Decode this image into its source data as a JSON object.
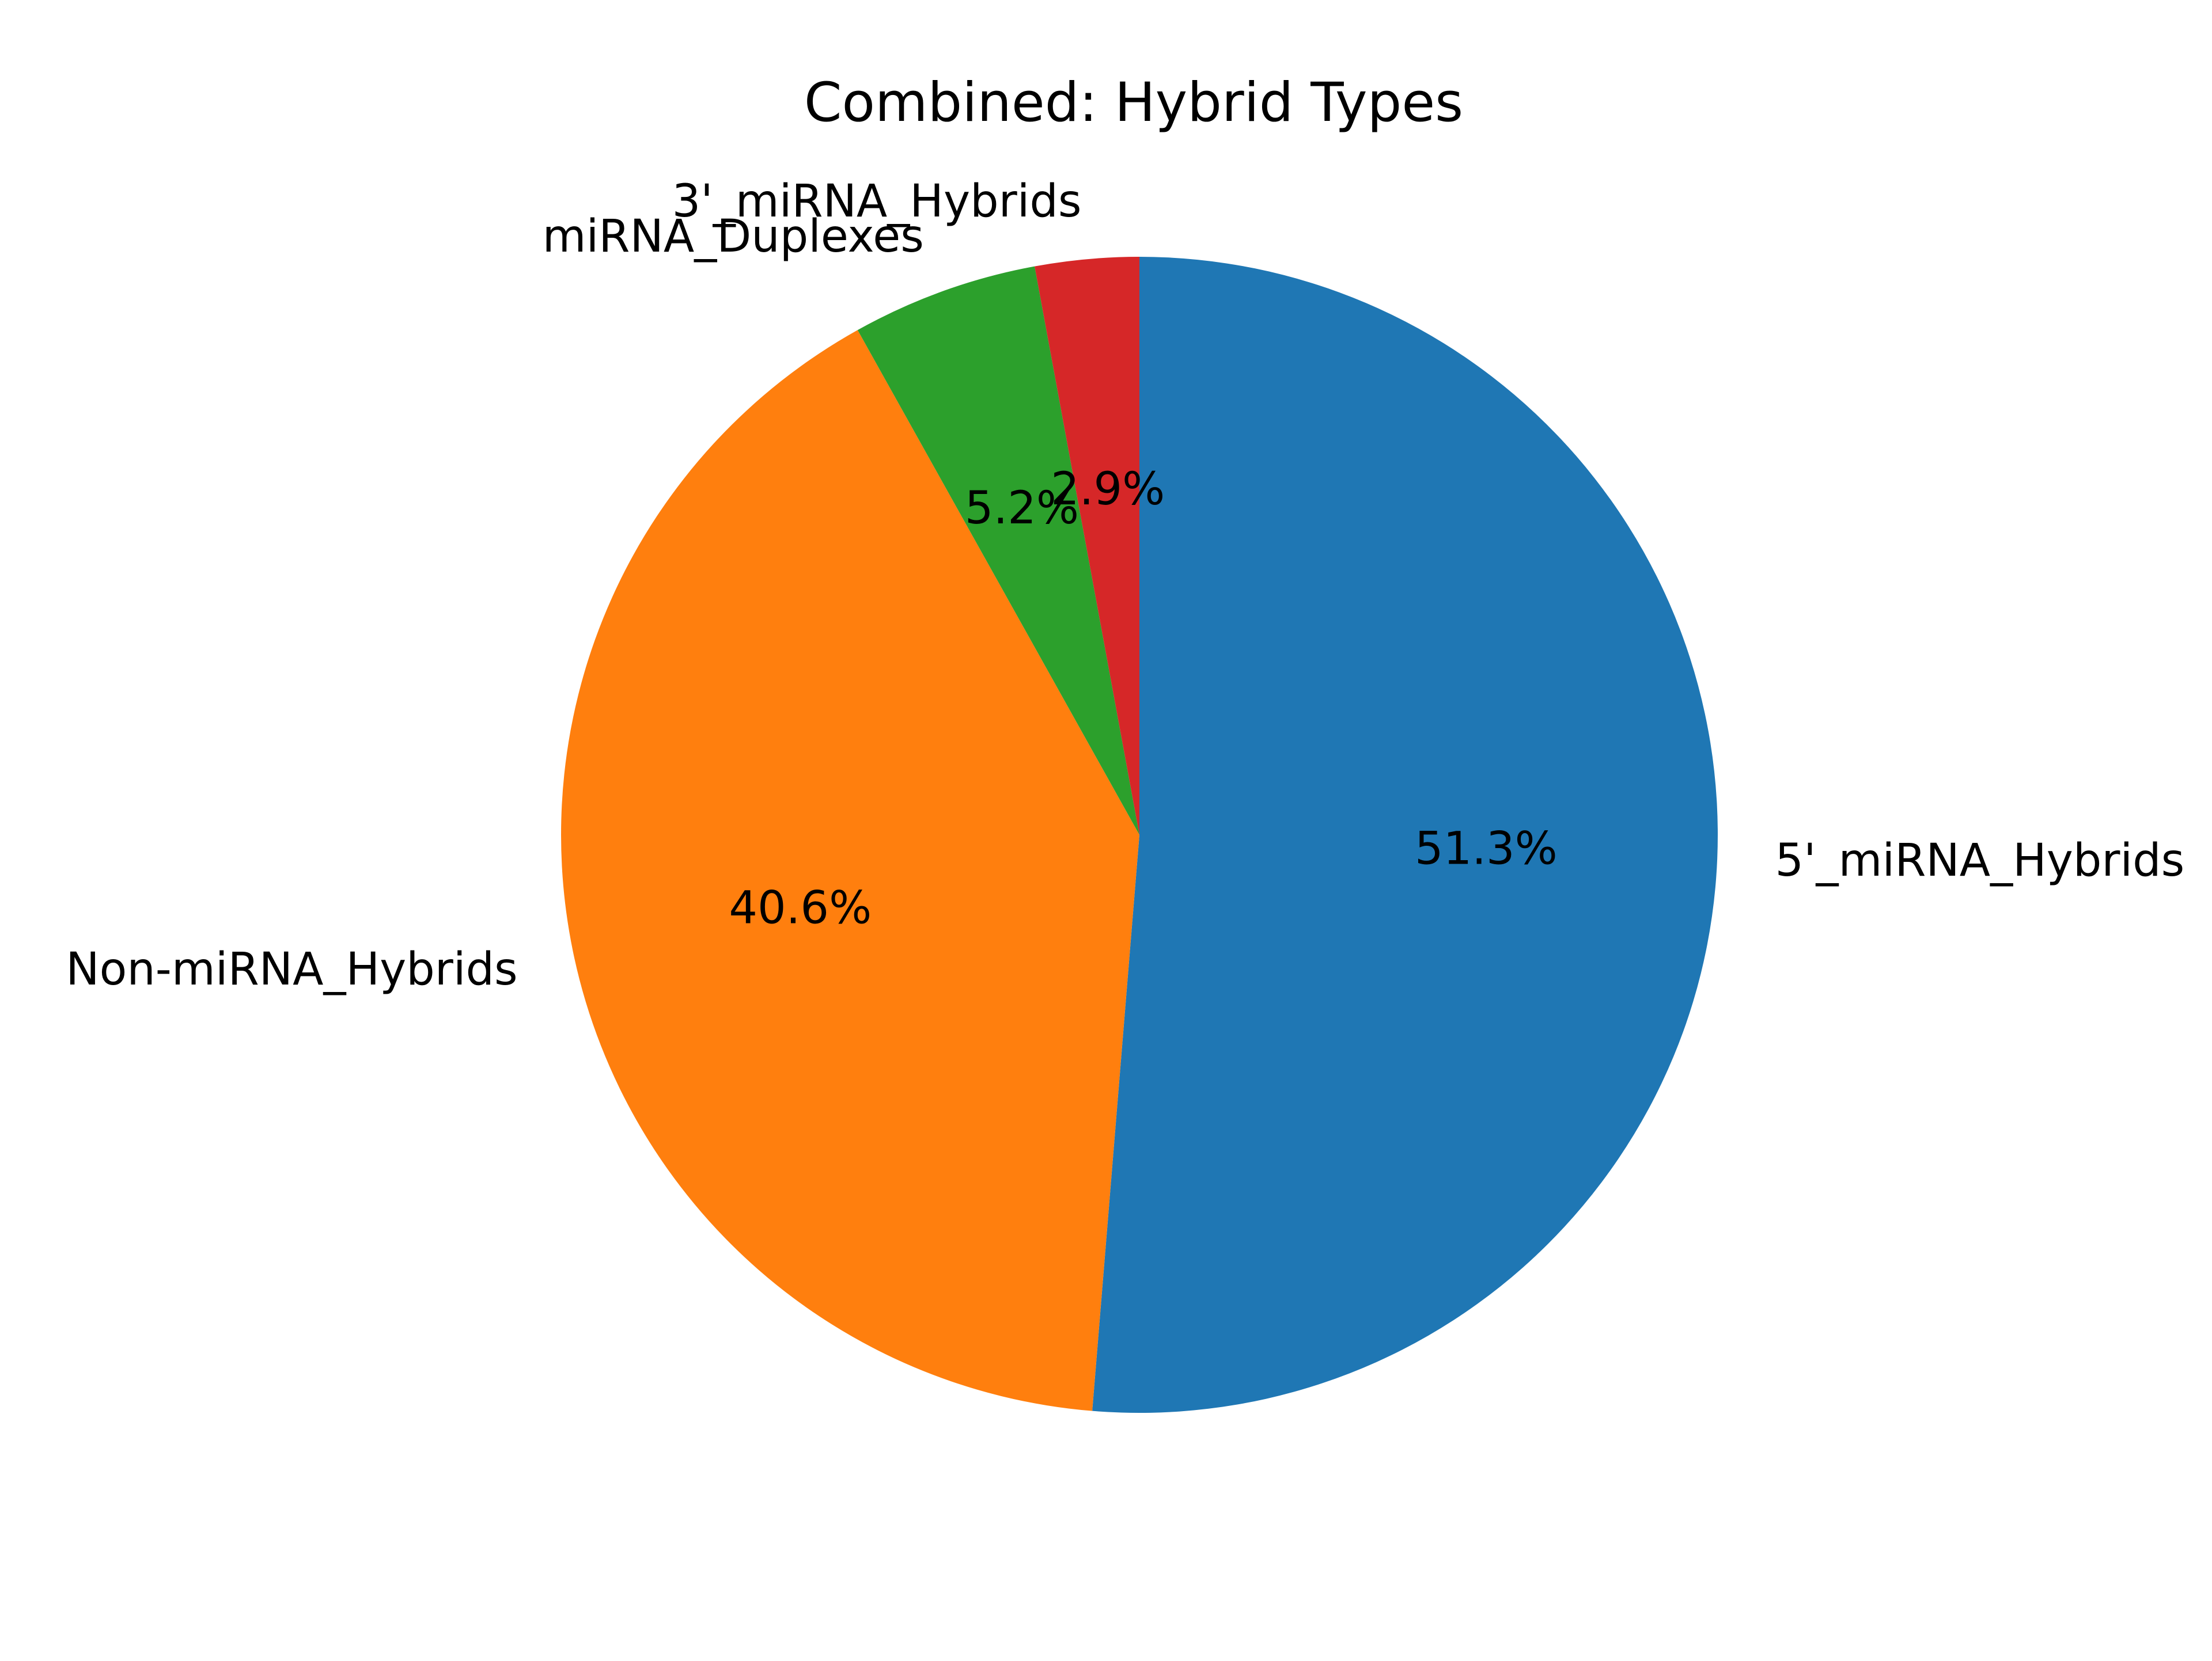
{
  "chart_data": {
    "type": "pie",
    "title": "Combined: Hybrid Types",
    "categories": [
      "5'_miRNA_Hybrids",
      "Non-miRNA_Hybrids",
      "miRNA_Duplexes",
      "3'_miRNA_Hybrids"
    ],
    "values": [
      51.3,
      40.6,
      5.2,
      2.9
    ],
    "percent_labels": [
      "51.3%",
      "40.6%",
      "5.2%",
      "2.9%"
    ],
    "colors": [
      "#1f77b4",
      "#ff7f0e",
      "#2ca02c",
      "#d62728"
    ],
    "start_angle_deg": 90,
    "direction": "clockwise",
    "legend": "none"
  }
}
